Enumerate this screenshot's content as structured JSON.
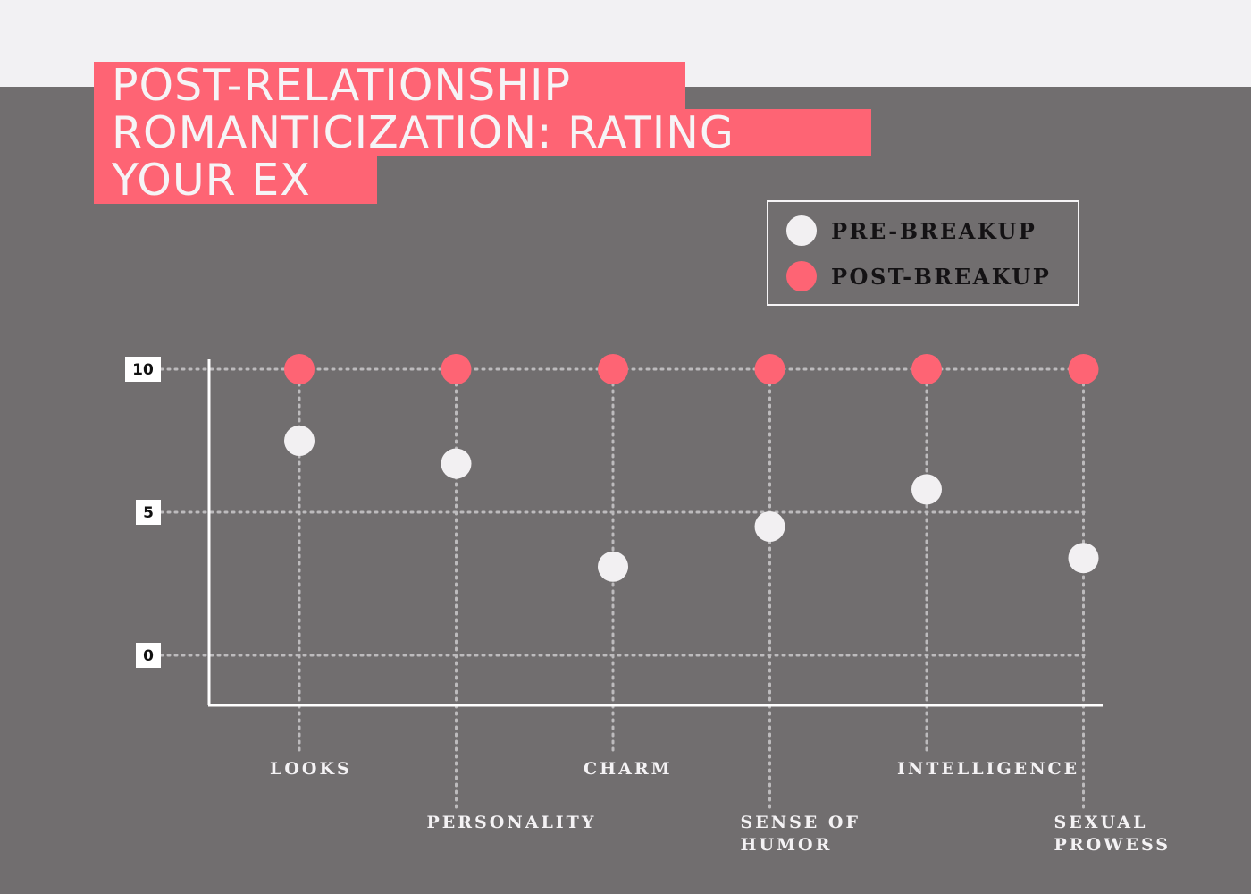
{
  "title_lines": [
    "POST-RELATIONSHIP",
    "ROMANTICIZATION: RATING",
    "YOUR EX"
  ],
  "colors": {
    "background_top": "#f2f1f3",
    "background_main": "#716e6f",
    "accent": "#fe6474",
    "pre_dot": "#f2f0f2",
    "axis": "#ffffff",
    "grid": "#bdbbbd"
  },
  "legend": {
    "items": [
      {
        "label": "PRE-BREAKUP",
        "color": "#f2f0f2"
      },
      {
        "label": "POST-BREAKUP",
        "color": "#fe6474"
      }
    ]
  },
  "chart_data": {
    "type": "scatter",
    "title": "POST-RELATIONSHIP ROMANTICIZATION: RATING YOUR EX",
    "categories": [
      [
        "LOOKS"
      ],
      [
        "PERSONALITY"
      ],
      [
        "CHARM"
      ],
      [
        "SENSE OF",
        "HUMOR"
      ],
      [
        "INTELLIGENCE"
      ],
      [
        "SEXUAL",
        "PROWESS"
      ]
    ],
    "series": [
      {
        "name": "PRE-BREAKUP",
        "values": [
          7.5,
          6.7,
          3.1,
          4.5,
          5.8,
          3.4
        ]
      },
      {
        "name": "POST-BREAKUP",
        "values": [
          10,
          10,
          10,
          10,
          10,
          10
        ]
      }
    ],
    "y_ticks": [
      0,
      5,
      10
    ],
    "ylim": [
      0,
      10
    ],
    "grid": true,
    "legend_position": "top-right"
  }
}
